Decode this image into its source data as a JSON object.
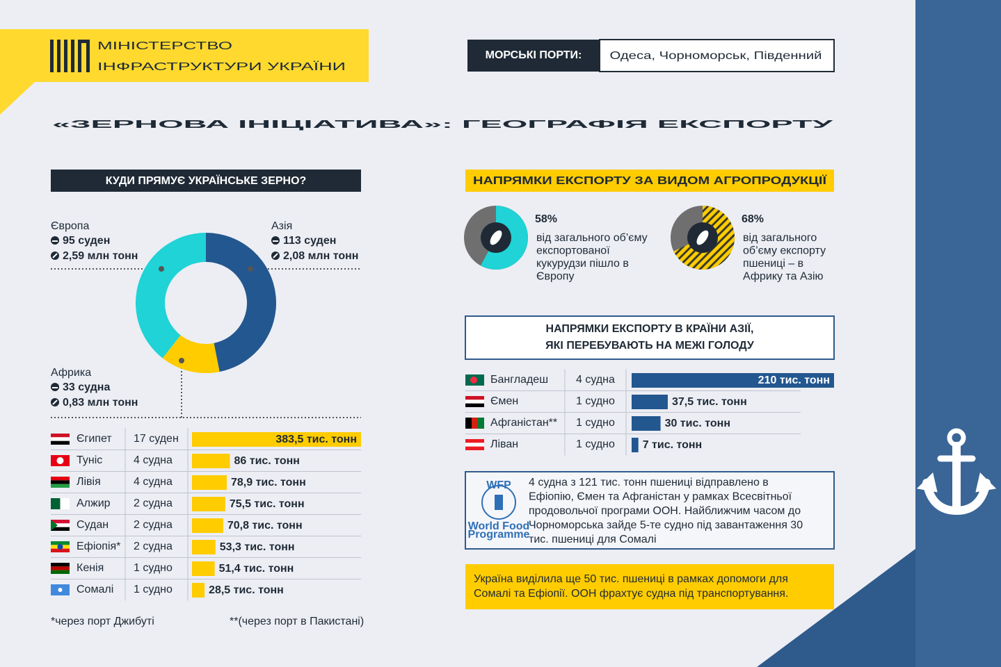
{
  "header": {
    "logo_lines": [
      "МІНІСТЕРСТВО",
      "ІНФРАСТРУКТУРИ УКРАЇНИ"
    ],
    "ports_label": "МОРСЬКІ ПОРТИ:",
    "ports": "Одеса, Чорноморськ, Південний"
  },
  "title": "«ЗЕРНОВА ІНІЦІАТИВА»: ГЕОГРАФІЯ ЕКСПОРТУ",
  "chart_data": [
    {
      "type": "donut",
      "title": "КУДИ ПРЯМУЄ УКРАЇНСЬКЕ ЗЕРНО?",
      "categories": [
        "Азія",
        "Африка",
        "Європа"
      ],
      "values": [
        113,
        33,
        95
      ],
      "value_labels": [
        "113 суден",
        "33 судна",
        "95 суден"
      ],
      "tonnage": [
        2.08,
        0.83,
        2.59
      ],
      "tonnage_labels": [
        "2,08 млн тонн",
        "0,83 млн тонн",
        "2,59 млн тонн"
      ],
      "colors": [
        "#23578f",
        "#ffcc00",
        "#1fd3d6"
      ]
    },
    {
      "type": "hbar",
      "categories": [
        "Єгипет",
        "Туніс",
        "Лівія",
        "Алжир",
        "Судан",
        "Ефіопія*",
        "Кенія",
        "Сомалі"
      ],
      "ships": [
        "17 суден",
        "4 судна",
        "4 судна",
        "2 судна",
        "2 судна",
        "2 судна",
        "1 судно",
        "1 судно"
      ],
      "values": [
        383.5,
        86,
        78.9,
        75.5,
        70.8,
        53.3,
        51.4,
        28.5
      ],
      "value_labels": [
        "383,5 тис. тонн",
        "86 тис. тонн",
        "78,9 тис. тонн",
        "75,5 тис. тонн",
        "70,8 тис. тонн",
        "53,3 тис. тонн",
        "51,4 тис. тонн",
        "28,5 тис. тонн"
      ],
      "xlim": [
        0,
        383.5
      ],
      "color": "#ffcc00"
    },
    {
      "type": "percent-rings",
      "title": "НАПРЯМКИ ЕКСПОРТУ ЗА ВИДОМ АГРОПРОДУКЦІЇ",
      "values": [
        58,
        68
      ],
      "value_labels": [
        "58%",
        "68%"
      ],
      "texts": [
        [
          "від загального об’єму",
          "експортованої",
          "кукурудзи пішло в",
          "Європу"
        ],
        [
          "від загального",
          "об’єму експорту",
          "пшениці – в",
          "Африку та Азію"
        ]
      ],
      "colors": [
        "#1fd3d6",
        "#ffcc00"
      ]
    },
    {
      "type": "hbar",
      "title": [
        "НАПРЯМКИ ЕКСПОРТУ В КРАЇНИ АЗІЇ,",
        "ЯКІ ПЕРЕБУВАЮТЬ НА МЕЖІ ГОЛОДУ"
      ],
      "categories": [
        "Бангладеш",
        "Ємен",
        "Афганістан**",
        "Ліван"
      ],
      "ships": [
        "4 судна",
        "1 судно",
        "1 судно",
        "1 судно"
      ],
      "values": [
        210,
        37.5,
        30,
        7
      ],
      "value_labels": [
        "210 тис. тонн",
        "37,5 тис. тонн",
        "30 тис. тонн",
        "7 тис. тонн"
      ],
      "xlim": [
        0,
        210
      ],
      "color": "#23578f"
    }
  ],
  "notes": {
    "wfp_logo": [
      "WFP",
      "World Food",
      "Programme"
    ],
    "wfp_text": [
      "4 судна з 121 тис. тонн пшениці відправлено в",
      "Ефіопію, Ємен та Афганістан у рамках Всесвітньої",
      "продовольчої програми ООН. Найближчим часом до",
      "Чорноморська зайде 5-те судно під завантаження 30",
      "тис. пшениці для Сомалі"
    ],
    "aid_text": [
      "Україна виділила ще 50 тис. пшениці в рамках допомоги для",
      "Сомалі та Ефіопії. ООН фрахтує судна під транспортування."
    ],
    "footnotes": [
      "*через порт Джибуті",
      "**(через порт в Пакистані)"
    ]
  }
}
